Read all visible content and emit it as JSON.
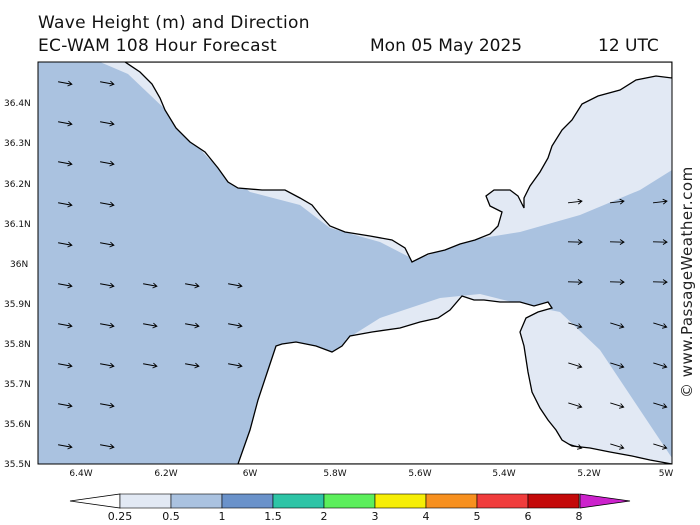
{
  "header": {
    "title": "Wave Height (m) and Direction",
    "model": "EC-WAM 108 Hour Forecast",
    "date": "Mon 05 May 2025",
    "time": "12 UTC"
  },
  "credit": "© www.PassageWeather.com",
  "axes": {
    "lat_labels": [
      "36.4N",
      "36.3N",
      "36.2N",
      "36.1N",
      "36N",
      "35.9N",
      "35.8N",
      "35.7N",
      "35.6N",
      "35.5N"
    ],
    "lon_labels": [
      "6.4W",
      "6.2W",
      "6W",
      "5.8W",
      "5.6W",
      "5.4W",
      "5.2W",
      "5W"
    ]
  },
  "colorbar": {
    "labels": [
      "0.25",
      "0.5",
      "1",
      "1.5",
      "2",
      "3",
      "4",
      "5",
      "6",
      "8"
    ],
    "colors": [
      "#e2e9f4",
      "#aac2e0",
      "#6a92ca",
      "#2ec4a6",
      "#5cef5c",
      "#f6ee06",
      "#f7901f",
      "#f03c3c",
      "#c40a0a",
      "#cc22cc"
    ]
  },
  "colors": {
    "land": "#ffffff",
    "wave_low": "#e2e9f4",
    "wave_mid": "#aac2e0",
    "coast": "#000000"
  }
}
